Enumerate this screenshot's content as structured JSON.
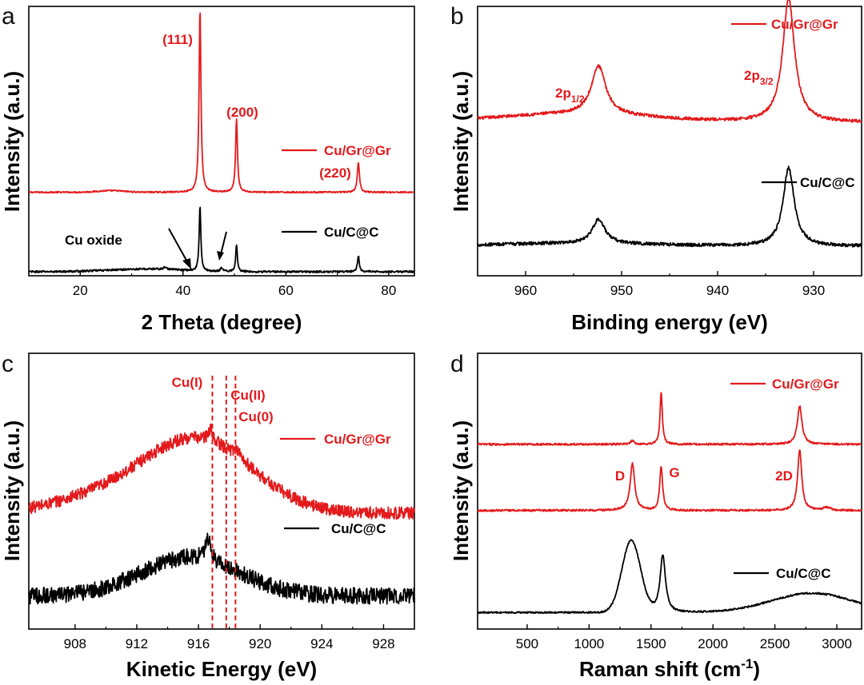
{
  "colors": {
    "red": "#e31a1c",
    "black": "#000000"
  },
  "chart_data": [
    {
      "panel": "a",
      "type": "line",
      "xlabel": "2 Theta (degree)",
      "ylabel": "Intensity (a.u.)",
      "xlim": [
        10,
        85
      ],
      "ylim": [
        0,
        100
      ],
      "xticks": [
        "20",
        "40",
        "60",
        "80"
      ],
      "xtick_values": [
        20,
        40,
        60,
        80
      ],
      "series": [
        {
          "name": "Cu/Gr@Gr",
          "color": "#e31a1c",
          "baseline": 31,
          "noise": 0.25,
          "bumps": [
            [
              26,
              0.6,
              2.5
            ]
          ],
          "peaks": [
            [
              43.3,
              68,
              0.22
            ],
            [
              50.4,
              27,
              0.22
            ],
            [
              74.1,
              11,
              0.25
            ]
          ]
        },
        {
          "name": "Cu/C@C",
          "color": "#000000",
          "baseline": 1.5,
          "noise": 0.35,
          "bumps": [
            [
              30,
              0.8,
              6
            ],
            [
              37,
              0.5,
              4
            ]
          ],
          "peaks": [
            [
              43.3,
              24,
              0.2
            ],
            [
              50.4,
              10,
              0.2
            ],
            [
              74.1,
              6,
              0.22
            ],
            [
              36.5,
              0.8,
              0.3
            ],
            [
              47.5,
              1.5,
              0.3
            ]
          ]
        }
      ],
      "annotations": [
        "(111)",
        "(200)",
        "(220)",
        "Cu oxide"
      ]
    },
    {
      "panel": "b",
      "type": "line",
      "xlabel": "Binding energy (eV)",
      "ylabel": "Intensity (a.u.)",
      "xlim": [
        965,
        925
      ],
      "ylim": [
        0,
        100
      ],
      "xticks": [
        "960",
        "950",
        "940",
        "930"
      ],
      "xtick_values": [
        960,
        950,
        940,
        930
      ],
      "series": [
        {
          "name": "Cu/Gr@Gr",
          "color": "#e31a1c",
          "baseline": 57,
          "noise": 0.55,
          "bumps": [
            [
              955,
              3,
              8
            ]
          ],
          "peaks": [
            [
              952.4,
              18,
              0.9
            ],
            [
              932.6,
              46,
              0.75
            ]
          ]
        },
        {
          "name": "Cu/C@C",
          "color": "#000000",
          "baseline": 11,
          "noise": 0.6,
          "bumps": [
            [
              955,
              1,
              8
            ]
          ],
          "peaks": [
            [
              952.4,
              9,
              0.8
            ],
            [
              932.6,
              29,
              0.7
            ]
          ]
        }
      ],
      "annotations": [
        "2p",
        "1/2",
        "2p",
        "3/2"
      ]
    },
    {
      "panel": "c",
      "type": "line",
      "xlabel": "Kinetic Energy (eV)",
      "ylabel": "Intensity (a.u.)",
      "xlim": [
        905,
        930
      ],
      "ylim": [
        0,
        100
      ],
      "xticks": [
        "908",
        "912",
        "916",
        "920",
        "924",
        "928"
      ],
      "xtick_values": [
        908,
        912,
        916,
        920,
        924,
        928
      ],
      "series": [
        {
          "name": "Cu/Gr@Gr",
          "color": "#e31a1c",
          "baseline": 42,
          "noise": 2.2,
          "bumps": [
            [
              915.8,
              27,
              3.6
            ],
            [
              909,
              4,
              3
            ]
          ],
          "peaks": [
            [
              916.8,
              4,
              0.2
            ],
            [
              918.5,
              3,
              0.25
            ]
          ]
        },
        {
          "name": "Cu/C@C",
          "color": "#000000",
          "baseline": 12,
          "noise": 3.0,
          "bumps": [
            [
              915.5,
              14,
              3.2
            ]
          ],
          "peaks": [
            [
              916.6,
              8,
              0.2
            ]
          ]
        }
      ],
      "reference_lines": [
        {
          "label": "Cu(I)",
          "x": 916.9
        },
        {
          "label": "Cu(II)",
          "x": 917.8
        },
        {
          "label": "Cu(0)",
          "x": 918.4
        }
      ]
    },
    {
      "panel": "d",
      "type": "line",
      "xlabel": "Raman shift (cm",
      "xlabel_sup": "-1",
      "xlabel_end": ")",
      "ylabel": "Intensity (a.u.)",
      "xlim": [
        100,
        3200
      ],
      "ylim": [
        0,
        100
      ],
      "xticks": [
        "500",
        "1000",
        "1500",
        "2000",
        "2500",
        "3000"
      ],
      "xtick_values": [
        500,
        1000,
        1500,
        2000,
        2500,
        3000
      ],
      "series": [
        {
          "name": "Cu/Gr@Gr",
          "color": "#e31a1c",
          "baseline": 67,
          "noise": 0.35,
          "bumps": [],
          "peaks": [
            [
              1350,
              1.2,
              18
            ],
            [
              1582,
              19,
              11
            ],
            [
              2700,
              14,
              22
            ]
          ]
        },
        {
          "name": "",
          "color": "#e31a1c",
          "baseline": 43,
          "noise": 0.35,
          "bumps": [],
          "peaks": [
            [
              1350,
              17,
              22
            ],
            [
              1582,
              16,
              14
            ],
            [
              2700,
              22,
              20
            ],
            [
              2920,
              1,
              40
            ]
          ]
        },
        {
          "name": "Cu/C@C",
          "color": "#000000",
          "baseline": 6,
          "noise": 0.3,
          "bumps": [
            [
              1340,
              26,
              75
            ],
            [
              2800,
              7,
              330
            ]
          ],
          "peaks": [
            [
              1595,
              21,
              26
            ]
          ]
        }
      ],
      "annotations": [
        "D",
        "G",
        "2D"
      ]
    }
  ]
}
